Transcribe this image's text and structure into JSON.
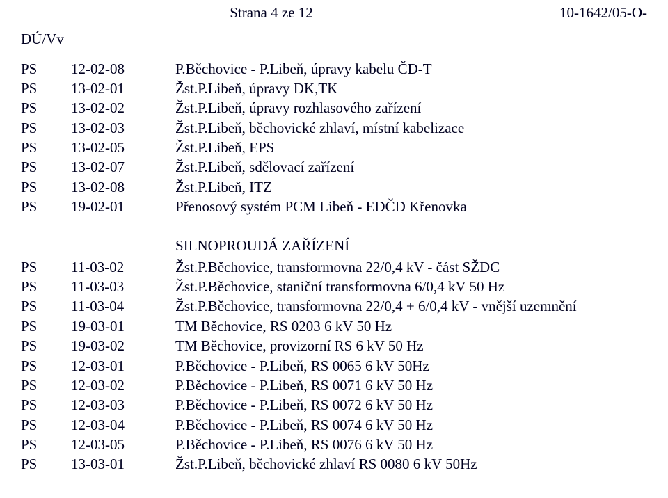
{
  "header": {
    "center": "Strana 4 ze 12",
    "right": "10-1642/05-O-",
    "left": "DÚ/Vv"
  },
  "section1": [
    {
      "ps": "PS",
      "code": "12-02-08",
      "desc": "P.Běchovice - P.Libeň, úpravy kabelu ČD-T"
    },
    {
      "ps": "PS",
      "code": "13-02-01",
      "desc": "Žst.P.Libeň, úpravy DK,TK"
    },
    {
      "ps": "PS",
      "code": "13-02-02",
      "desc": "Žst.P.Libeň, úpravy rozhlasového zařízení"
    },
    {
      "ps": "PS",
      "code": "13-02-03",
      "desc": "Žst.P.Libeň, běchovické zhlaví, místní kabelizace"
    },
    {
      "ps": "PS",
      "code": "13-02-05",
      "desc": "Žst.P.Libeň, EPS"
    },
    {
      "ps": "PS",
      "code": "13-02-07",
      "desc": "Žst.P.Libeň, sdělovací zařízení"
    },
    {
      "ps": "PS",
      "code": "13-02-08",
      "desc": "Žst.P.Libeň, ITZ"
    },
    {
      "ps": "PS",
      "code": "19-02-01",
      "desc": "Přenosový systém PCM Libeň - EDČD Křenovka"
    }
  ],
  "section2_title": "SILNOPROUDÁ ZAŘÍZENÍ",
  "section2": [
    {
      "ps": "PS",
      "code": "11-03-02",
      "desc": "Žst.P.Běchovice, transformovna 22/0,4 kV - část SŽDC"
    },
    {
      "ps": "PS",
      "code": "11-03-03",
      "desc": "Žst.P.Běchovice, staniční transformovna 6/0,4 kV 50 Hz"
    },
    {
      "ps": "PS",
      "code": "11-03-04",
      "desc": "Žst.P.Běchovice, transformovna 22/0,4 + 6/0,4 kV - vnější uzemnění"
    },
    {
      "ps": "PS",
      "code": "19-03-01",
      "desc": "TM Běchovice, RS 0203  6 kV 50 Hz"
    },
    {
      "ps": "PS",
      "code": "19-03-02",
      "desc": "TM Běchovice, provizorní RS 6 kV 50 Hz"
    },
    {
      "ps": "PS",
      "code": "12-03-01",
      "desc": "P.Běchovice - P.Libeň, RS 0065  6 kV 50Hz"
    },
    {
      "ps": "PS",
      "code": "12-03-02",
      "desc": "P.Běchovice - P.Libeň, RS 0071  6 kV 50 Hz"
    },
    {
      "ps": "PS",
      "code": "12-03-03",
      "desc": "P.Běchovice - P.Libeň, RS 0072  6 kV 50 Hz"
    },
    {
      "ps": "PS",
      "code": "12-03-04",
      "desc": "P.Běchovice - P.Libeň, RS 0074  6 kV 50 Hz"
    },
    {
      "ps": "PS",
      "code": "12-03-05",
      "desc": "P.Běchovice - P.Libeň, RS 0076  6 kV 50 Hz"
    },
    {
      "ps": "PS",
      "code": "13-03-01",
      "desc": "Žst.P.Libeň, běchovické zhlaví RS 0080 6 kV 50Hz"
    }
  ]
}
